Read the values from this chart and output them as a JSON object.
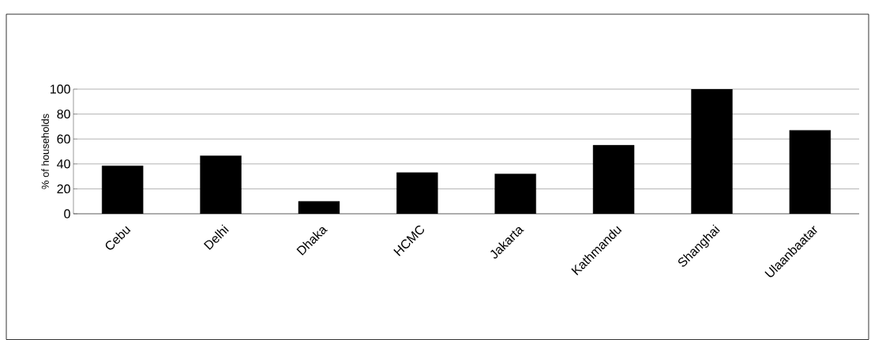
{
  "chart_data": {
    "type": "bar",
    "ylabel": "% of households",
    "categories": [
      "Cebu",
      "Delhi",
      "Dhaka",
      "HCMC",
      "Jakarta",
      "Kathmandu",
      "Shanghai",
      "Ulaanbaatar"
    ],
    "values": [
      38.5,
      46.5,
      10,
      33,
      32,
      55,
      100,
      67
    ],
    "color": "#000000",
    "ylim": [
      0,
      100
    ],
    "yticks": [
      0,
      20,
      40,
      60,
      80,
      100
    ],
    "grid": "y"
  }
}
